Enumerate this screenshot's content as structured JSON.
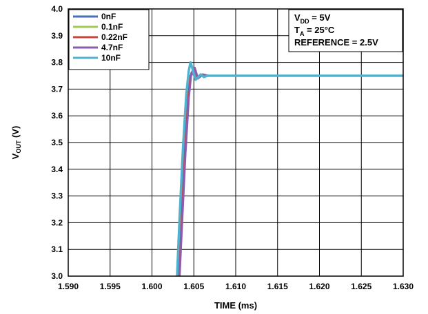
{
  "chart_data": {
    "type": "line",
    "xlabel": "TIME (ms)",
    "ylabel_main": "V",
    "ylabel_sub": "OUT",
    "ylabel_unit": " (V)",
    "xlim": [
      1.59,
      1.63
    ],
    "ylim": [
      3.0,
      4.0
    ],
    "x_ticks": [
      "1.590",
      "1.595",
      "1.600",
      "1.605",
      "1.610",
      "1.615",
      "1.620",
      "1.625",
      "1.630"
    ],
    "y_ticks": [
      "3.0",
      "3.1",
      "3.2",
      "3.3",
      "3.4",
      "3.5",
      "3.6",
      "3.7",
      "3.8",
      "3.9",
      "4.0"
    ],
    "grid": true,
    "legend_position": "top-left",
    "annotations": [
      {
        "main": "V",
        "sub": "DD",
        "rest": " = 5V"
      },
      {
        "main": "T",
        "sub": "A",
        "rest": " = 25°C"
      },
      {
        "main": "REFERENCE = 2.5V",
        "sub": "",
        "rest": ""
      }
    ],
    "series": [
      {
        "name": "0nF",
        "color": "#4a6fb5",
        "x": [
          1.603,
          1.6033,
          1.6037,
          1.6041,
          1.6044,
          1.6048,
          1.6052,
          1.6058,
          1.6065,
          1.6075,
          1.63
        ],
        "y": [
          3.0,
          3.2,
          3.45,
          3.65,
          3.73,
          3.76,
          3.745,
          3.75,
          3.75,
          3.75,
          3.75
        ]
      },
      {
        "name": "0.1nF",
        "color": "#9ccc55",
        "x": [
          1.6031,
          1.6034,
          1.6038,
          1.6042,
          1.6045,
          1.6049,
          1.6053,
          1.6059,
          1.6066,
          1.6075,
          1.63
        ],
        "y": [
          3.0,
          3.2,
          3.45,
          3.65,
          3.74,
          3.765,
          3.745,
          3.752,
          3.75,
          3.75,
          3.75
        ]
      },
      {
        "name": "0.22nF",
        "color": "#c9453f",
        "x": [
          1.6032,
          1.6035,
          1.6039,
          1.6043,
          1.6046,
          1.605,
          1.6054,
          1.606,
          1.6067,
          1.6075,
          1.63
        ],
        "y": [
          3.0,
          3.2,
          3.45,
          3.66,
          3.75,
          3.77,
          3.742,
          3.755,
          3.75,
          3.75,
          3.75
        ]
      },
      {
        "name": "4.7nF",
        "color": "#8a5db0",
        "x": [
          1.6033,
          1.6036,
          1.604,
          1.6044,
          1.6047,
          1.6051,
          1.6055,
          1.6061,
          1.6067,
          1.6075,
          1.63
        ],
        "y": [
          3.0,
          3.2,
          3.46,
          3.67,
          3.76,
          3.78,
          3.74,
          3.755,
          3.75,
          3.75,
          3.75
        ]
      },
      {
        "name": "10nF",
        "color": "#4fb3cf",
        "x": [
          1.603,
          1.6033,
          1.6037,
          1.6041,
          1.6044,
          1.6046,
          1.6049,
          1.6052,
          1.6054,
          1.6058,
          1.6062,
          1.6066,
          1.6072,
          1.63
        ],
        "y": [
          3.0,
          3.22,
          3.48,
          3.68,
          3.77,
          3.8,
          3.77,
          3.735,
          3.74,
          3.755,
          3.745,
          3.75,
          3.75,
          3.75
        ]
      }
    ]
  }
}
